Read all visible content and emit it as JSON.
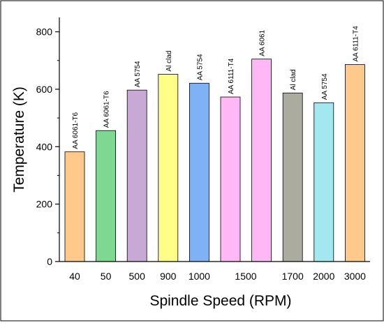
{
  "chart_data": {
    "type": "bar",
    "title": "",
    "xlabel": "Spindle Speed (RPM)",
    "ylabel": "Temperature (K)",
    "ylim": [
      0,
      850
    ],
    "yticks": [
      0,
      200,
      400,
      600,
      800
    ],
    "grid": false,
    "legend": "none",
    "bars": [
      {
        "tick": "40",
        "value": 382,
        "label": "AA 6061-T6",
        "color": "#ffc98b"
      },
      {
        "tick": "50",
        "value": 456,
        "label": "AA 6061-T6",
        "color": "#7fd892"
      },
      {
        "tick": "500",
        "value": 597,
        "label": "AA 5754",
        "color": "#c8a9d6"
      },
      {
        "tick": "900",
        "value": 652,
        "label": "Al clad",
        "color": "#ffff88"
      },
      {
        "tick": "1000",
        "value": 621,
        "label": "AA 5754",
        "color": "#7fb2f5"
      },
      {
        "tick": "1500",
        "value": 573,
        "label": "AA 6111-T4",
        "color": "#ffb8f5"
      },
      {
        "tick": "",
        "value": 705,
        "label": "AA 6061",
        "color": "#ffb8f5"
      },
      {
        "tick": "1700",
        "value": 587,
        "label": "Al clad",
        "color": "#ababa0"
      },
      {
        "tick": "2000",
        "value": 553,
        "label": "AA 5754",
        "color": "#a3e8ee"
      },
      {
        "tick": "3000",
        "value": 686,
        "label": "AA 6111-T4",
        "color": "#ffc98b"
      }
    ]
  }
}
